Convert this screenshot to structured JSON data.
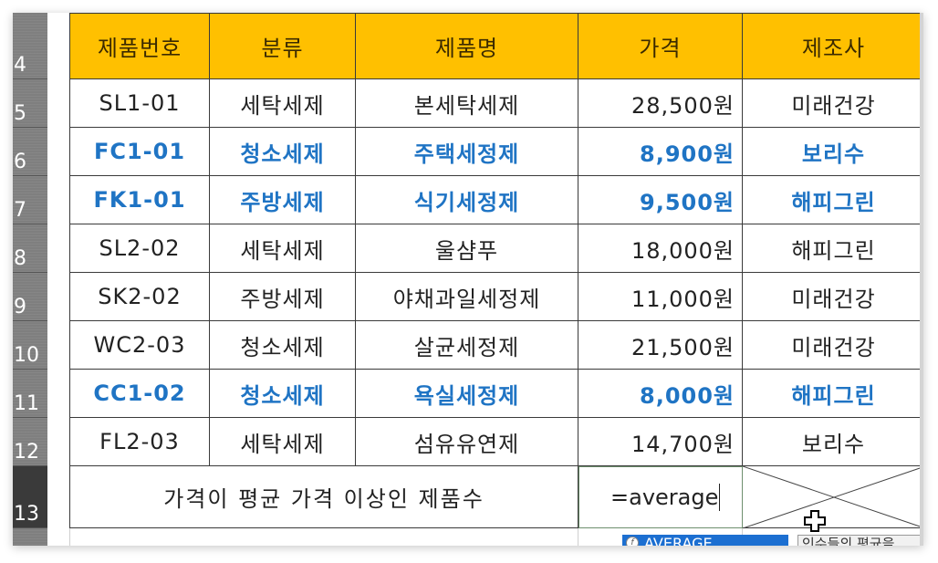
{
  "row_headers": [
    "4",
    "5",
    "6",
    "7",
    "8",
    "9",
    "10",
    "11",
    "12",
    "13"
  ],
  "table": {
    "columns": [
      "제품번호",
      "분류",
      "제품명",
      "가격",
      "제조사"
    ],
    "rows": [
      {
        "id": "SL1-01",
        "category": "세탁세제",
        "name": "본세탁세제",
        "price": "28,500원",
        "maker": "미래건강",
        "highlight": false
      },
      {
        "id": "FC1-01",
        "category": "청소세제",
        "name": "주택세정제",
        "price": "8,900원",
        "maker": "보리수",
        "highlight": true
      },
      {
        "id": "FK1-01",
        "category": "주방세제",
        "name": "식기세정제",
        "price": "9,500원",
        "maker": "해피그린",
        "highlight": true
      },
      {
        "id": "SL2-02",
        "category": "세탁세제",
        "name": "울샴푸",
        "price": "18,000원",
        "maker": "해피그린",
        "highlight": false
      },
      {
        "id": "SK2-02",
        "category": "주방세제",
        "name": "야채과일세정제",
        "price": "11,000원",
        "maker": "미래건강",
        "highlight": false
      },
      {
        "id": "WC2-03",
        "category": "청소세제",
        "name": "살균세정제",
        "price": "21,500원",
        "maker": "미래건강",
        "highlight": false
      },
      {
        "id": "CC1-02",
        "category": "청소세제",
        "name": "욕실세정제",
        "price": "8,000원",
        "maker": "해피그린",
        "highlight": true
      },
      {
        "id": "FL2-03",
        "category": "세탁세제",
        "name": "섬유유연제",
        "price": "14,700원",
        "maker": "보리수",
        "highlight": false
      }
    ]
  },
  "summary": {
    "label": "가격이 평균 가격 이상인 제품수",
    "formula_input": "=average"
  },
  "autocomplete": {
    "item": "AVERAGE",
    "tooltip": "인수들의 평균을"
  },
  "colors": {
    "header_fill": "#ffc000",
    "highlight_text": "#1f74c4",
    "autocomplete_selected": "#1c6fd1"
  }
}
